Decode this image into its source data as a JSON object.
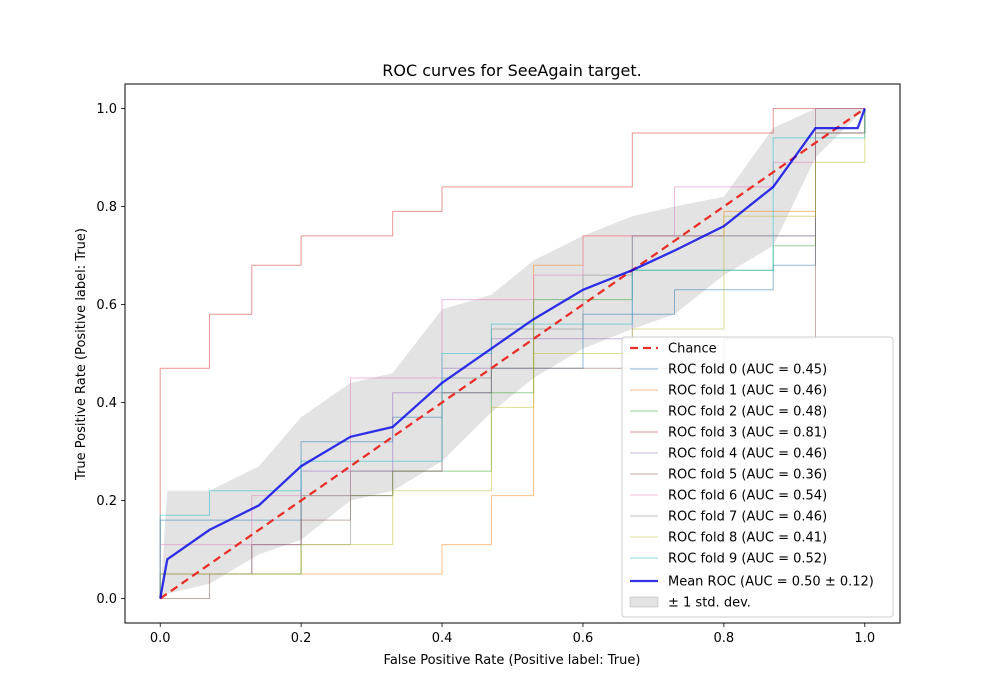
{
  "chart_data": {
    "type": "line",
    "title": "ROC curves for SeeAgain target.",
    "xlabel": "False Positive Rate (Positive label: True)",
    "ylabel": "True Positive Rate (Positive label: True)",
    "xlim": [
      -0.05,
      1.05
    ],
    "ylim": [
      -0.05,
      1.05
    ],
    "xticks": [
      "0.0",
      "0.2",
      "0.4",
      "0.6",
      "0.8",
      "1.0"
    ],
    "yticks": [
      "0.0",
      "0.2",
      "0.4",
      "0.6",
      "0.8",
      "1.0"
    ],
    "legend_position": "lower-right",
    "grid": false,
    "chance": {
      "name": "Chance",
      "x": [
        0,
        1
      ],
      "y": [
        0,
        1
      ],
      "color": "#e8302b"
    },
    "folds": [
      {
        "name": "ROC fold 0 (AUC = 0.45)",
        "color": "#1f77b4",
        "x": [
          0,
          0,
          0.2,
          0.2,
          0.33,
          0.33,
          0.4,
          0.4,
          0.47,
          0.47,
          0.6,
          0.6,
          0.73,
          0.73,
          0.87,
          0.87,
          0.93,
          0.93,
          1,
          1
        ],
        "y": [
          0,
          0.16,
          0.16,
          0.32,
          0.32,
          0.37,
          0.37,
          0.42,
          0.42,
          0.47,
          0.47,
          0.58,
          0.58,
          0.63,
          0.63,
          0.68,
          0.68,
          0.95,
          0.95,
          1
        ]
      },
      {
        "name": "ROC fold 1 (AUC = 0.46)",
        "color": "#ff7f0e",
        "x": [
          0,
          0,
          0.4,
          0.4,
          0.47,
          0.47,
          0.53,
          0.53,
          0.6,
          0.6,
          0.8,
          0.8,
          0.93,
          0.93,
          1,
          1
        ],
        "y": [
          0,
          0.05,
          0.05,
          0.11,
          0.11,
          0.21,
          0.21,
          0.68,
          0.68,
          0.74,
          0.74,
          0.79,
          0.79,
          0.95,
          0.95,
          1
        ]
      },
      {
        "name": "ROC fold 2 (AUC = 0.48)",
        "color": "#2ca02c",
        "x": [
          0,
          0,
          0.2,
          0.2,
          0.33,
          0.33,
          0.47,
          0.47,
          0.53,
          0.53,
          0.67,
          0.67,
          0.87,
          0.87,
          0.93,
          0.93,
          1,
          1
        ],
        "y": [
          0,
          0.05,
          0.05,
          0.21,
          0.21,
          0.26,
          0.26,
          0.42,
          0.42,
          0.61,
          0.61,
          0.67,
          0.67,
          0.72,
          0.72,
          1,
          1,
          1
        ]
      },
      {
        "name": "ROC fold 3 (AUC = 0.81)",
        "color": "#d62728",
        "x": [
          0,
          0,
          0.07,
          0.07,
          0.13,
          0.13,
          0.2,
          0.2,
          0.33,
          0.33,
          0.4,
          0.4,
          0.67,
          0.67,
          0.87,
          0.87,
          1
        ],
        "y": [
          0,
          0.47,
          0.47,
          0.58,
          0.58,
          0.68,
          0.68,
          0.74,
          0.74,
          0.79,
          0.79,
          0.84,
          0.84,
          0.95,
          0.95,
          1,
          1
        ]
      },
      {
        "name": "ROC fold 4 (AUC = 0.46)",
        "color": "#9467bd",
        "x": [
          0,
          0,
          0.13,
          0.13,
          0.2,
          0.2,
          0.33,
          0.33,
          0.4,
          0.4,
          0.47,
          0.47,
          0.67,
          0.67,
          0.93,
          0.93,
          1,
          1
        ],
        "y": [
          0,
          0.05,
          0.05,
          0.11,
          0.11,
          0.26,
          0.26,
          0.42,
          0.42,
          0.47,
          0.47,
          0.53,
          0.53,
          0.74,
          0.74,
          0.95,
          0.95,
          1
        ]
      },
      {
        "name": "ROC fold 5 (AUC = 0.36)",
        "color": "#8c564b",
        "x": [
          0,
          0.07,
          0.07,
          0.13,
          0.13,
          0.2,
          0.2,
          0.27,
          0.27,
          0.33,
          0.33,
          0.4,
          0.4,
          0.47,
          0.47,
          0.8,
          0.8,
          0.93,
          0.93,
          1,
          1
        ],
        "y": [
          0,
          0,
          0.05,
          0.05,
          0.11,
          0.11,
          0.16,
          0.16,
          0.21,
          0.21,
          0.26,
          0.26,
          0.42,
          0.42,
          0.47,
          0.47,
          0.53,
          0.53,
          0.95,
          0.95,
          1
        ]
      },
      {
        "name": "ROC fold 6 (AUC = 0.54)",
        "color": "#e377c2",
        "x": [
          0,
          0,
          0.13,
          0.13,
          0.27,
          0.27,
          0.4,
          0.4,
          0.53,
          0.53,
          0.6,
          0.6,
          0.73,
          0.73,
          0.87,
          0.87,
          0.93,
          0.93,
          1
        ],
        "y": [
          0,
          0.11,
          0.11,
          0.21,
          0.21,
          0.45,
          0.45,
          0.61,
          0.61,
          0.66,
          0.66,
          0.74,
          0.74,
          0.84,
          0.84,
          0.89,
          0.89,
          1,
          1
        ]
      },
      {
        "name": "ROC fold 7 (AUC = 0.46)",
        "color": "#7f7f7f",
        "x": [
          0,
          0,
          0.2,
          0.2,
          0.27,
          0.27,
          0.4,
          0.4,
          0.47,
          0.47,
          0.6,
          0.6,
          0.67,
          0.67,
          0.93,
          0.93,
          1,
          1
        ],
        "y": [
          0,
          0.05,
          0.05,
          0.11,
          0.11,
          0.26,
          0.26,
          0.45,
          0.45,
          0.55,
          0.55,
          0.66,
          0.66,
          0.74,
          0.74,
          0.95,
          0.95,
          1
        ]
      },
      {
        "name": "ROC fold 8 (AUC = 0.41)",
        "color": "#bcbd22",
        "x": [
          0,
          0,
          0.2,
          0.2,
          0.33,
          0.33,
          0.47,
          0.47,
          0.53,
          0.53,
          0.67,
          0.67,
          0.8,
          0.8,
          0.93,
          0.93,
          1,
          1
        ],
        "y": [
          0,
          0.05,
          0.05,
          0.11,
          0.11,
          0.22,
          0.22,
          0.39,
          0.39,
          0.5,
          0.5,
          0.55,
          0.55,
          0.78,
          0.78,
          0.89,
          0.89,
          1
        ]
      },
      {
        "name": "ROC fold 9 (AUC = 0.52)",
        "color": "#17becf",
        "x": [
          0,
          0,
          0.07,
          0.07,
          0.2,
          0.2,
          0.4,
          0.4,
          0.47,
          0.47,
          0.67,
          0.67,
          0.87,
          0.87,
          1,
          1
        ],
        "y": [
          0,
          0.17,
          0.17,
          0.22,
          0.22,
          0.28,
          0.28,
          0.5,
          0.5,
          0.56,
          0.56,
          0.67,
          0.67,
          0.94,
          0.94,
          1
        ]
      }
    ],
    "mean": {
      "name": "Mean ROC (AUC = 0.50 ± 0.12)",
      "color": "#0000e6",
      "x": [
        0,
        0.01,
        0.01,
        0.07,
        0.07,
        0.14,
        0.14,
        0.2,
        0.2,
        0.27,
        0.27,
        0.33,
        0.33,
        0.4,
        0.4,
        0.47,
        0.47,
        0.53,
        0.53,
        0.6,
        0.6,
        0.67,
        0.67,
        0.73,
        0.73,
        0.8,
        0.8,
        0.87,
        0.87,
        0.93,
        0.93,
        0.99,
        1
      ],
      "y": [
        0,
        0.08,
        0.08,
        0.14,
        0.14,
        0.19,
        0.19,
        0.27,
        0.27,
        0.33,
        0.33,
        0.35,
        0.35,
        0.44,
        0.44,
        0.51,
        0.51,
        0.57,
        0.57,
        0.63,
        0.63,
        0.67,
        0.67,
        0.71,
        0.71,
        0.76,
        0.76,
        0.84,
        0.84,
        0.96,
        0.96,
        0.96,
        1
      ]
    },
    "std_band": {
      "name": "± 1 std. dev.",
      "color": "#c8c8c8",
      "x": [
        0,
        0.01,
        0.07,
        0.14,
        0.2,
        0.27,
        0.33,
        0.4,
        0.47,
        0.53,
        0.6,
        0.67,
        0.73,
        0.8,
        0.87,
        0.93,
        1
      ],
      "upper": [
        0,
        0.22,
        0.22,
        0.27,
        0.37,
        0.44,
        0.46,
        0.59,
        0.62,
        0.69,
        0.74,
        0.78,
        0.8,
        0.82,
        0.96,
        1,
        1
      ],
      "lower": [
        0,
        0.01,
        0.03,
        0.09,
        0.12,
        0.2,
        0.22,
        0.28,
        0.38,
        0.45,
        0.51,
        0.55,
        0.58,
        0.66,
        0.72,
        0.9,
        1
      ]
    }
  }
}
